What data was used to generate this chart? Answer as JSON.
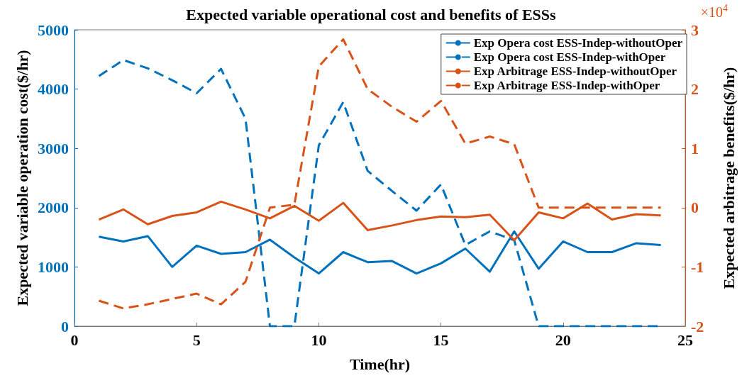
{
  "chart_data": {
    "type": "line",
    "title": "Expected variable operational cost and benefits of ESSs",
    "xlabel": "Time(hr)",
    "ylabel": "Expected variable operation cost($/hr)",
    "y2label": "Expected arbitrage benefits($/hr)",
    "x": [
      1,
      2,
      3,
      4,
      5,
      6,
      7,
      8,
      9,
      10,
      11,
      12,
      13,
      14,
      15,
      16,
      17,
      18,
      19,
      20,
      21,
      22,
      23,
      24
    ],
    "series": [
      {
        "name": "Exp Opera cost ESS-Indep-withoutOper",
        "color": "#0072bd",
        "line_style": "solid",
        "values": [
          1510,
          1430,
          1520,
          1000,
          1360,
          1220,
          1250,
          1460,
          1160,
          890,
          1250,
          1080,
          1100,
          890,
          1060,
          1310,
          920,
          1600,
          970,
          1430,
          1250,
          1250,
          1400,
          1370
        ]
      },
      {
        "name": "Exp Opera cost ESS-Indep-withOper",
        "color": "#0072bd",
        "line_style": "dashed",
        "values": [
          4220,
          4490,
          4350,
          4150,
          3930,
          4340,
          3500,
          0,
          0,
          3050,
          3780,
          2620,
          2280,
          1950,
          2390,
          1370,
          1600,
          1450,
          0,
          0,
          0,
          0,
          0,
          0
        ]
      },
      {
        "name": "Exp Arbitrage ESS-Indep-withoutOper",
        "color": "#d95319",
        "line_style": "solid",
        "axis": "y2",
        "values": [
          -0.2,
          -0.03,
          -0.28,
          -0.14,
          -0.08,
          0.1,
          -0.03,
          -0.18,
          0.03,
          -0.22,
          0.08,
          -0.38,
          -0.3,
          -0.21,
          -0.15,
          -0.16,
          -0.12,
          -0.55,
          -0.08,
          -0.18,
          0.07,
          -0.2,
          -0.11,
          -0.13
        ]
      },
      {
        "name": "Exp Arbitrage ESS-Indep-withOper",
        "color": "#d95319",
        "line_style": "dashed",
        "axis": "y2",
        "values": [
          -1.57,
          -1.7,
          -1.63,
          -1.54,
          -1.45,
          -1.63,
          -1.25,
          0,
          0.05,
          2.38,
          2.84,
          2.0,
          1.7,
          1.45,
          1.8,
          1.08,
          1.2,
          1.07,
          0,
          0,
          0,
          0,
          0,
          0
        ]
      }
    ],
    "xlim": [
      0,
      25
    ],
    "xticks": [
      0,
      5,
      10,
      15,
      20,
      25
    ],
    "ylim": [
      0,
      5000
    ],
    "yticks": [
      0,
      1000,
      2000,
      3000,
      4000,
      5000
    ],
    "y2lim": [
      -2,
      3
    ],
    "y2ticks": [
      -2,
      -1,
      0,
      1,
      2,
      3
    ],
    "annotations": [
      "×10$^{4}$"
    ],
    "legend": "top right",
    "grid": false,
    "marker": "none"
  }
}
